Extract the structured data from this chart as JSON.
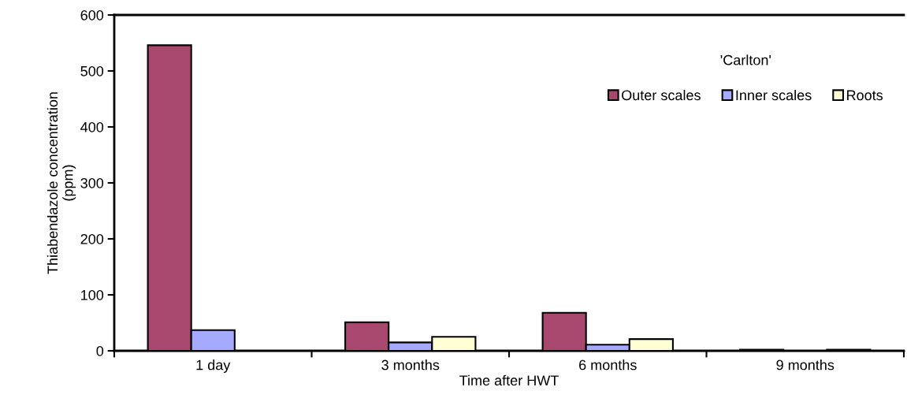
{
  "chart_data": {
    "type": "bar",
    "xlabel": "Time after HWT",
    "ylabel": "Thiabendazole concentration\n(ppm)",
    "legend_title": "'Carlton'",
    "legend": "top right",
    "categories": [
      "1 day",
      "3 months",
      "6 months",
      "9 months"
    ],
    "series": [
      {
        "name": "Outer scales",
        "color": "#a8486f",
        "values": [
          546,
          51,
          68,
          2
        ]
      },
      {
        "name": "Inner scales",
        "color": "#a6aaff",
        "values": [
          37,
          15,
          11,
          null
        ]
      },
      {
        "name": "Roots",
        "color": "#ffffd4",
        "values": [
          null,
          25,
          21,
          2
        ]
      }
    ],
    "ylim": [
      0,
      600
    ],
    "yticks": [
      0,
      100,
      200,
      300,
      400,
      500,
      600
    ],
    "grid": false
  }
}
